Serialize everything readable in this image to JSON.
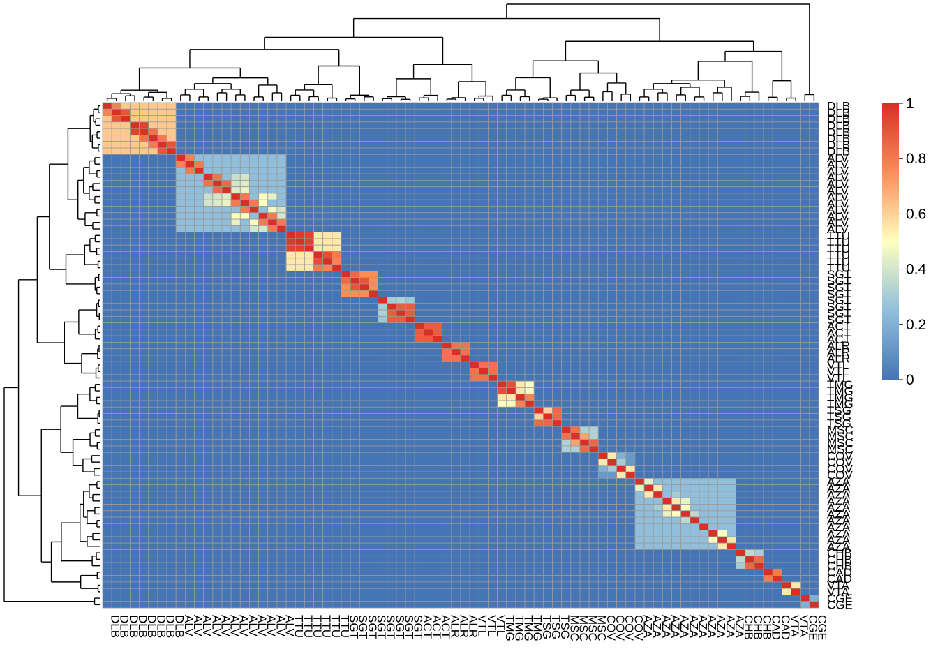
{
  "chart_data": {
    "type": "heatmap",
    "title": "",
    "xlabel": "",
    "ylabel": "",
    "row_labels": [
      "DLB",
      "DLB",
      "DLB",
      "DLB",
      "DLB",
      "DLB",
      "DLB",
      "DLB",
      "ALV",
      "ALV",
      "ALV",
      "ALV",
      "ALV",
      "ALV",
      "ALV",
      "ALV",
      "ALV",
      "ALV",
      "ALV",
      "ALV",
      "TTU",
      "TTU",
      "TTU",
      "TTU",
      "TTU",
      "TTU",
      "SGT",
      "SGT",
      "SGT",
      "SGT",
      "SGT",
      "SGT",
      "SGT",
      "SGT",
      "ACT",
      "ACT",
      "ACT",
      "ALR",
      "ALR",
      "ALR",
      "VTL",
      "VTL",
      "VTL",
      "TMG",
      "TMG",
      "TMG",
      "TMG",
      "TSG",
      "TSG",
      "TSG",
      "MSC",
      "MSC",
      "MSC",
      "MSC",
      "COV",
      "COV",
      "COV",
      "COV",
      "AZA",
      "AZA",
      "AZA",
      "AZA",
      "AZA",
      "AZA",
      "AZA",
      "AZA",
      "AZA",
      "AZA",
      "AZA",
      "CHB",
      "CHB",
      "CHB",
      "CAD",
      "CAD",
      "VTA",
      "VTA",
      "CGE",
      "CGE"
    ],
    "blocks": [
      {
        "name": "DLB",
        "size": 8,
        "within": 0.62,
        "pairs": [
          [
            0,
            1,
            0.78
          ],
          [
            1,
            2,
            0.9
          ],
          [
            3,
            4,
            0.95
          ],
          [
            4,
            5,
            0.82
          ],
          [
            5,
            6,
            0.8
          ],
          [
            6,
            7,
            0.9
          ]
        ]
      },
      {
        "name": "ALV",
        "size": 12,
        "within": 0.25,
        "pairs": [
          [
            0,
            1,
            0.78
          ],
          [
            1,
            2,
            0.8
          ],
          [
            3,
            4,
            0.82
          ],
          [
            4,
            5,
            0.85
          ],
          [
            6,
            7,
            0.8
          ],
          [
            7,
            8,
            0.8
          ],
          [
            9,
            10,
            0.8
          ],
          [
            10,
            11,
            0.8
          ],
          [
            3,
            6,
            0.38
          ],
          [
            3,
            7,
            0.4
          ],
          [
            4,
            6,
            0.4
          ],
          [
            4,
            7,
            0.42
          ],
          [
            5,
            6,
            0.42
          ],
          [
            5,
            7,
            0.45
          ],
          [
            6,
            9,
            0.5
          ],
          [
            7,
            9,
            0.5
          ],
          [
            8,
            10,
            0.48
          ],
          [
            9,
            11,
            0.4
          ],
          [
            8,
            11,
            0.4
          ],
          [
            6,
            10,
            0.45
          ]
        ]
      },
      {
        "name": "TTU",
        "size": 6,
        "within": 0.55,
        "pairs": [
          [
            0,
            1,
            0.97
          ],
          [
            0,
            2,
            0.95
          ],
          [
            1,
            2,
            0.95
          ],
          [
            3,
            4,
            0.92
          ],
          [
            3,
            5,
            0.8
          ],
          [
            4,
            5,
            0.78
          ]
        ]
      },
      {
        "name": "SGT",
        "size": 4,
        "within": 0.75,
        "pairs": [
          [
            0,
            1,
            0.85
          ],
          [
            1,
            2,
            0.9
          ]
        ]
      },
      {
        "name": "SGT",
        "size": 4,
        "within": 0.88,
        "pairs": [
          [
            0,
            1,
            0.3
          ],
          [
            0,
            2,
            0.32
          ],
          [
            0,
            3,
            0.28
          ]
        ]
      },
      {
        "name": "ACT",
        "size": 3,
        "within": 0.88,
        "pairs": []
      },
      {
        "name": "ALR",
        "size": 3,
        "within": 0.82,
        "pairs": []
      },
      {
        "name": "VTL",
        "size": 3,
        "within": 0.82,
        "pairs": []
      },
      {
        "name": "TMG",
        "size": 4,
        "within": 0.55,
        "pairs": [
          [
            0,
            1,
            0.92
          ],
          [
            2,
            3,
            0.78
          ],
          [
            0,
            3,
            0.5
          ],
          [
            1,
            3,
            0.48
          ]
        ]
      },
      {
        "name": "TSG",
        "size": 3,
        "within": 0.85,
        "pairs": [
          [
            0,
            1,
            0.6
          ]
        ]
      },
      {
        "name": "MSC",
        "size": 4,
        "within": 0.32,
        "pairs": [
          [
            0,
            1,
            0.82
          ],
          [
            2,
            3,
            0.85
          ],
          [
            1,
            2,
            0.7
          ]
        ]
      },
      {
        "name": "COV",
        "size": 4,
        "within": 0.12,
        "pairs": [
          [
            0,
            1,
            0.55
          ],
          [
            1,
            2,
            0.3
          ],
          [
            2,
            3,
            0.55
          ],
          [
            0,
            2,
            0.2
          ]
        ]
      },
      {
        "name": "AZA",
        "size": 11,
        "within": 0.25,
        "pairs": [
          [
            0,
            1,
            0.45
          ],
          [
            1,
            2,
            0.55
          ],
          [
            3,
            4,
            0.55
          ],
          [
            4,
            5,
            0.5
          ],
          [
            5,
            6,
            0.35
          ],
          [
            8,
            9,
            0.5
          ],
          [
            9,
            10,
            0.55
          ],
          [
            3,
            5,
            0.45
          ],
          [
            2,
            4,
            0.3
          ]
        ]
      },
      {
        "name": "CHB",
        "size": 3,
        "within": 0.5,
        "pairs": [
          [
            0,
            1,
            0.35
          ],
          [
            0,
            2,
            0.3
          ],
          [
            1,
            2,
            0.85
          ]
        ]
      },
      {
        "name": "CAD",
        "size": 2,
        "within": 0.8,
        "pairs": []
      },
      {
        "name": "VTA",
        "size": 2,
        "within": 0.55,
        "pairs": []
      },
      {
        "name": "CGE",
        "size": 2,
        "within": 0.2,
        "pairs": []
      }
    ],
    "legend": {
      "ticks": [
        "1",
        "0.8",
        "0.6",
        "0.4",
        "0.2",
        "0"
      ],
      "min": 0,
      "max": 1,
      "placement": "right"
    },
    "colors": {
      "low": "#4575b4",
      "mid_low": "#91bfdb",
      "mid": "#ffffbf",
      "mid_high": "#fc8d59",
      "high": "#d73027",
      "cell_border": "#9a9a9a"
    }
  }
}
